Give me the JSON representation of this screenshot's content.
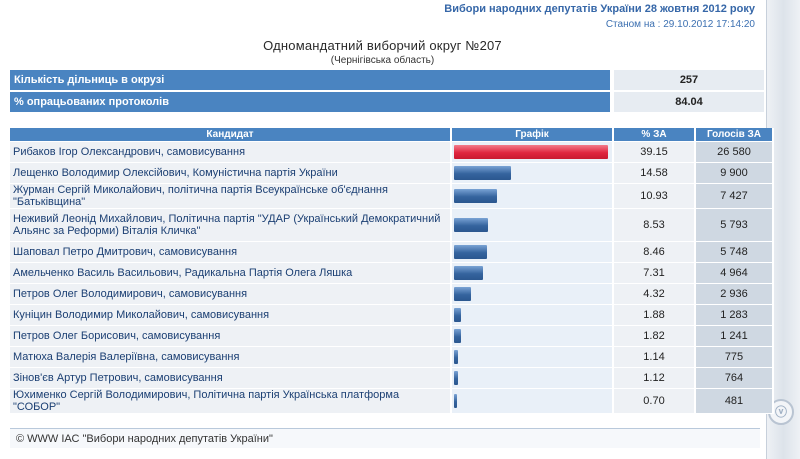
{
  "header": {
    "title": "Вибори народних депутатів України 28 жовтня 2012 року",
    "date": "Станом на : 29.10.2012 17:14:20"
  },
  "district": {
    "title": "Одномандатний виборчий округ №207",
    "region": "(Чернігівська область)"
  },
  "stats": [
    {
      "label": "Кількість дільниць в окрузі",
      "value": "257"
    },
    {
      "label": "% опрацьованих протоколів",
      "value": "84.04"
    }
  ],
  "table": {
    "headers": {
      "candidate": "Кандидат",
      "chart": "Графік",
      "percent": "% ЗА",
      "votes": "Голосів ЗА"
    },
    "rows": [
      {
        "name": "Рибаков Ігор Олександрович, самовисування",
        "percent": 39.15,
        "percent_label": "39.15",
        "votes": "26 580",
        "leader": true
      },
      {
        "name": "Лещенко Володимир Олексійович, Комуністична партія України",
        "percent": 14.58,
        "percent_label": "14.58",
        "votes": "9 900"
      },
      {
        "name": "Журман Сергій Миколайович, політична партія Всеукраїнське об'єднання \"Батьківщина\"",
        "percent": 10.93,
        "percent_label": "10.93",
        "votes": "7 427"
      },
      {
        "name": "Неживий Леонід Михайлович, Політична партія \"УДАР (Український Демократичний Альянс за Реформи) Віталія Кличка\"",
        "percent": 8.53,
        "percent_label": "8.53",
        "votes": "5 793",
        "tall": true
      },
      {
        "name": "Шаповал Петро Дмитрович, самовисування",
        "percent": 8.46,
        "percent_label": "8.46",
        "votes": "5 748"
      },
      {
        "name": "Амельченко Василь Васильович, Радикальна Партія Олега Ляшка",
        "percent": 7.31,
        "percent_label": "7.31",
        "votes": "4 964"
      },
      {
        "name": "Петров Олег Володимирович, самовисування",
        "percent": 4.32,
        "percent_label": "4.32",
        "votes": "2 936"
      },
      {
        "name": "Куніцин Володимир Миколайович, самовисування",
        "percent": 1.88,
        "percent_label": "1.88",
        "votes": "1 283"
      },
      {
        "name": "Петров Олег Борисович, самовисування",
        "percent": 1.82,
        "percent_label": "1.82",
        "votes": "1 241"
      },
      {
        "name": "Матюха Валерія Валеріївна, самовисування",
        "percent": 1.14,
        "percent_label": "1.14",
        "votes": "775"
      },
      {
        "name": "Зінов'єв Артур Петрович, самовисування",
        "percent": 1.12,
        "percent_label": "1.12",
        "votes": "764"
      },
      {
        "name": "Юхименко Сергій Володимирович, Політична партія Українська платформа \"СОБОР\"",
        "percent": 0.7,
        "percent_label": "0.70",
        "votes": "481"
      }
    ]
  },
  "footer": {
    "text": "© WWW ІАС \"Вибори народних депутатів України\""
  },
  "colors": {
    "header_blue": "#4a84c1",
    "bar_blue": "#35649e",
    "bar_leader": "#e0253f"
  }
}
